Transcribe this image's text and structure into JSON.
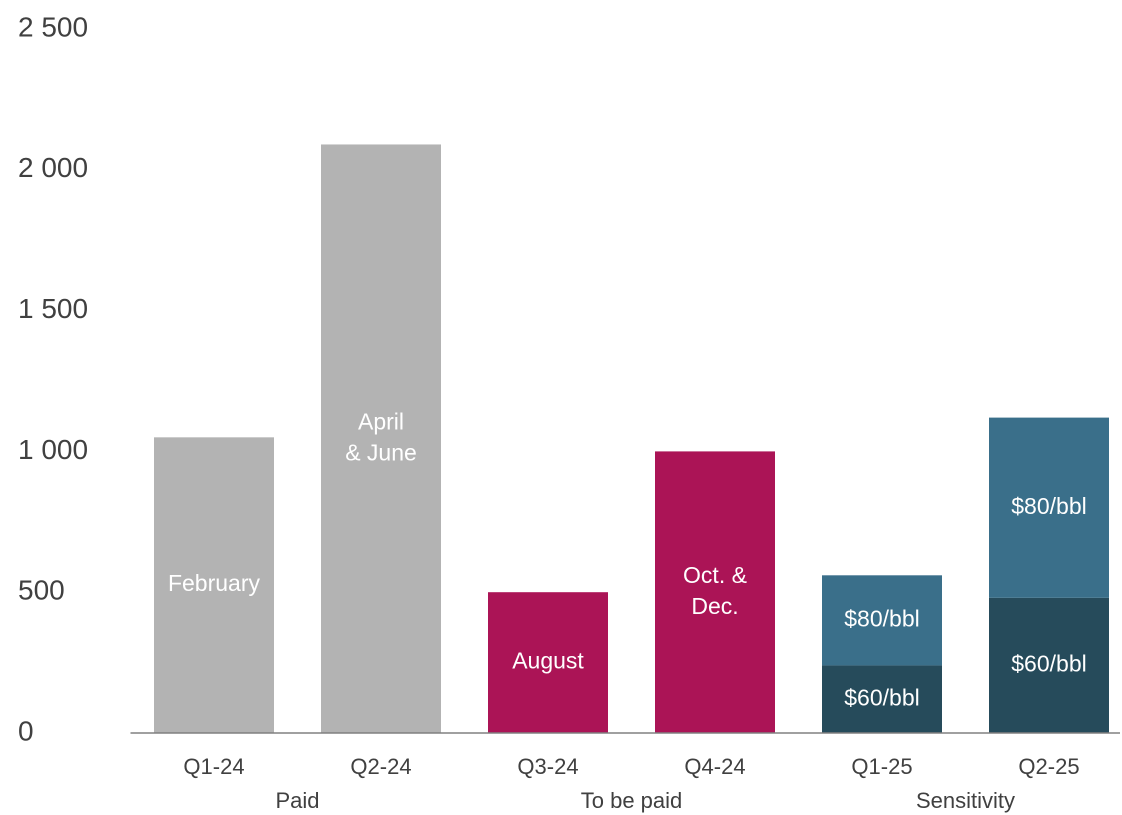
{
  "chart_data": {
    "type": "bar",
    "stacked": true,
    "groups": [
      {
        "label": "Paid",
        "categories": [
          "Q1-24",
          "Q2-24"
        ]
      },
      {
        "label": "To be paid",
        "categories": [
          "Q3-24",
          "Q4-24"
        ]
      },
      {
        "label": "Sensitivity",
        "categories": [
          "Q1-25",
          "Q2-25"
        ]
      }
    ],
    "series": [
      {
        "color": "#b3b3b3",
        "values": [
          1050,
          2090,
          null,
          null,
          null,
          null
        ],
        "labels": [
          [
            "February"
          ],
          [
            "April",
            "& June"
          ],
          null,
          null,
          null,
          null
        ]
      },
      {
        "color": "#ab1456",
        "values": [
          null,
          null,
          500,
          1000,
          null,
          null
        ],
        "labels": [
          null,
          null,
          [
            "August"
          ],
          [
            "Oct. &",
            "Dec."
          ],
          null,
          null
        ]
      },
      {
        "name": "$60/bbl",
        "color": "#264b5b",
        "values": [
          null,
          null,
          null,
          null,
          240,
          480
        ]
      },
      {
        "name": "$80/bbl",
        "color": "#3a6f8a",
        "values": [
          null,
          null,
          null,
          null,
          320,
          640
        ]
      }
    ],
    "ylim": [
      0,
      2500
    ],
    "yticks": [
      0,
      500,
      {
        "value": 1000,
        "label": "1 000"
      },
      {
        "value": 1500,
        "label": "1 500"
      },
      {
        "value": 2000,
        "label": "2 000"
      },
      {
        "value": 2500,
        "label": "2 500"
      }
    ],
    "grid": false
  }
}
